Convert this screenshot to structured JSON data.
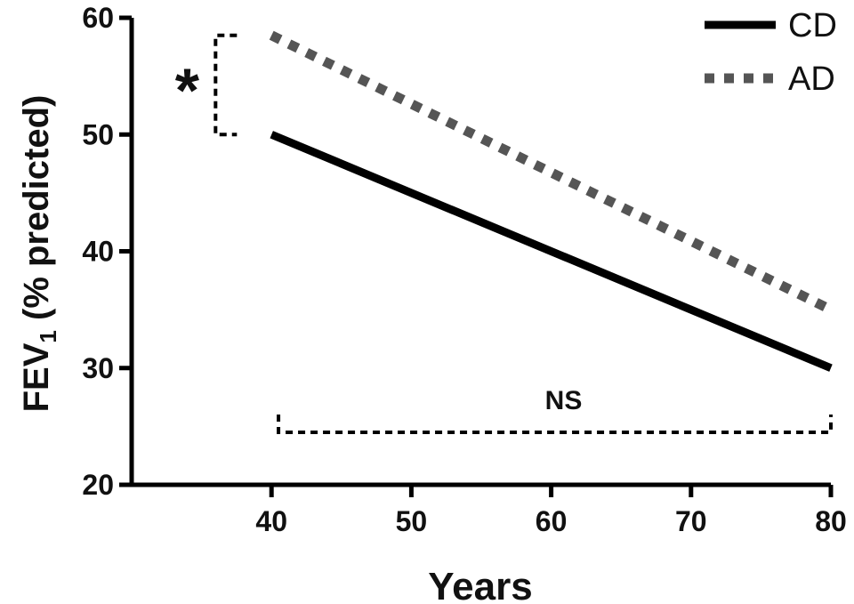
{
  "chart_data": {
    "type": "line",
    "xlabel": "Years",
    "ylabel": {
      "main": "FEV",
      "subscript": "1",
      "suffix": " (% predicted)"
    },
    "xlim": [
      30,
      80
    ],
    "ylim": [
      20,
      60
    ],
    "xticks": [
      40,
      50,
      60,
      70,
      80
    ],
    "yticks": [
      20,
      30,
      40,
      50,
      60
    ],
    "grid": false,
    "legend_position": "top-right",
    "series": [
      {
        "name": "CD",
        "style": "solid",
        "color": "#000000",
        "x": [
          40,
          80
        ],
        "y": [
          50,
          30
        ]
      },
      {
        "name": "AD",
        "style": "dotted",
        "color": "#555555",
        "x": [
          40,
          80
        ],
        "y": [
          58.5,
          35
        ]
      }
    ],
    "annotations": [
      {
        "label": "*",
        "type": "vertical-bracket",
        "x": 36,
        "y_range": [
          50,
          58.5
        ]
      },
      {
        "label": "NS",
        "type": "horizontal-bracket",
        "y": 24.5,
        "x_range": [
          40.5,
          80
        ]
      }
    ]
  }
}
